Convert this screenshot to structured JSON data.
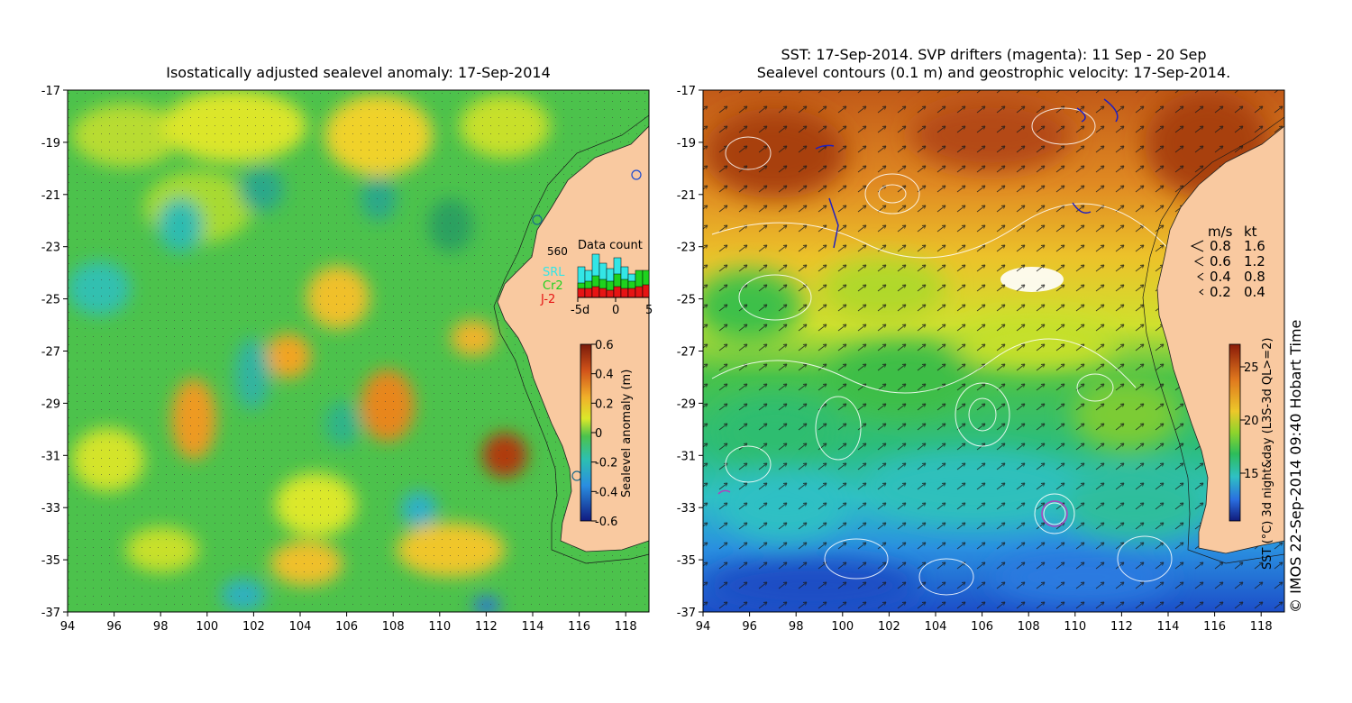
{
  "left_panel": {
    "title": "Isostatically adjusted sealevel anomaly: 17-Sep-2014",
    "x_ticks": [
      "94",
      "96",
      "98",
      "100",
      "102",
      "104",
      "106",
      "108",
      "110",
      "112",
      "114",
      "116",
      "118"
    ],
    "y_ticks": [
      "-17",
      "-19",
      "-21",
      "-23",
      "-25",
      "-27",
      "-29",
      "-31",
      "-33",
      "-35",
      "-37"
    ],
    "colorbar": {
      "label": "Sealevel anomaly (m)",
      "ticks": [
        "0.6",
        "0.4",
        "0.2",
        "0",
        "-0.2",
        "-0.4",
        "-0.6"
      ]
    },
    "data_count": {
      "title": "Data count",
      "max_label": "560",
      "satellites": [
        {
          "name": "SRL",
          "color": "#33e6e6"
        },
        {
          "name": "Cr2",
          "color": "#1ed21e"
        },
        {
          "name": "J-2",
          "color": "#e61414"
        }
      ],
      "x_ticks": [
        "-5d",
        "0",
        "5"
      ]
    }
  },
  "right_panel": {
    "title_line1": "SST: 17-Sep-2014. SVP drifters (magenta): 11 Sep - 20 Sep",
    "title_line2": "Sealevel contours (0.1 m) and geostrophic velocity: 17-Sep-2014.",
    "x_ticks": [
      "94",
      "96",
      "98",
      "100",
      "102",
      "104",
      "106",
      "108",
      "110",
      "112",
      "114",
      "116",
      "118"
    ],
    "y_ticks": [
      "-17",
      "-19",
      "-21",
      "-23",
      "-25",
      "-27",
      "-29",
      "-31",
      "-33",
      "-35",
      "-37"
    ],
    "velocity_legend": {
      "header_ms": "m/s",
      "header_kt": "kt",
      "rows": [
        {
          "ms": "0.8",
          "kt": "1.6"
        },
        {
          "ms": "0.6",
          "kt": "1.2"
        },
        {
          "ms": "0.4",
          "kt": "0.8"
        },
        {
          "ms": "0.2",
          "kt": "0.4"
        }
      ]
    },
    "colorbar": {
      "label": "SST (°C) 3d night&day (L3S-3d QL>=2)",
      "ticks": [
        "25",
        "20",
        "15"
      ]
    }
  },
  "credit": "© IMOS 22-Sep-2014 09:40 Hobart Time",
  "colors": {
    "land": "#f9c9a0",
    "ocean_green": "#4cc24c",
    "sst_warm": "#c75a1a",
    "sst_cold": "#1a6fd6"
  }
}
